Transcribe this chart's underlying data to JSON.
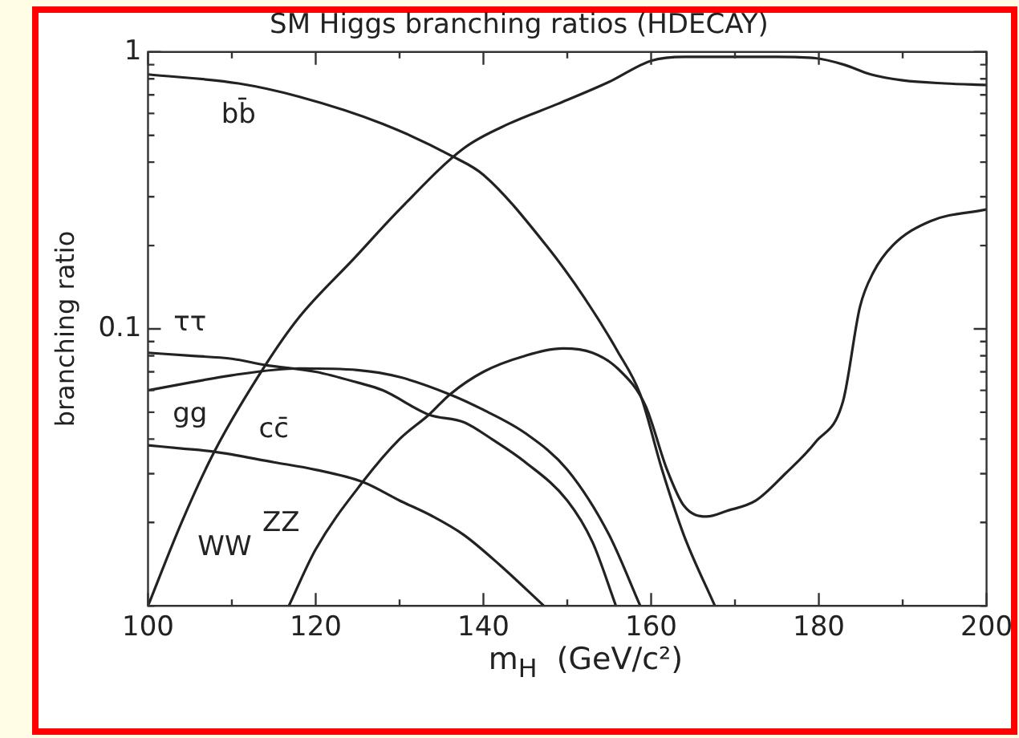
{
  "chart_data": {
    "type": "line",
    "title": "SM Higgs branching ratios (HDECAY)",
    "xlabel": "m$_{H}$  (GeV/c²)",
    "ylabel": "branching ratio",
    "log": "y",
    "grid": false,
    "legend": false,
    "marker": "none",
    "line_style": "solid",
    "xlim": [
      100,
      200
    ],
    "ylim": [
      0.01,
      1
    ],
    "xticks": [
      100,
      {
        "value": 110,
        "label": null
      },
      120,
      {
        "value": 130,
        "label": null
      },
      140,
      {
        "value": 150,
        "label": null
      },
      160,
      {
        "value": 170,
        "label": null
      },
      180,
      {
        "value": 190,
        "label": null
      },
      200
    ],
    "yticks": [
      {
        "value": 0.01,
        "label": null
      },
      {
        "value": 0.02,
        "label": null
      },
      {
        "value": 0.03,
        "label": null
      },
      {
        "value": 0.04,
        "label": null
      },
      {
        "value": 0.05,
        "label": null
      },
      {
        "value": 0.06,
        "label": null
      },
      {
        "value": 0.07,
        "label": null
      },
      {
        "value": 0.08,
        "label": null
      },
      {
        "value": 0.09,
        "label": null
      },
      0.1,
      {
        "value": 0.2,
        "label": null
      },
      {
        "value": 0.3,
        "label": null
      },
      {
        "value": 0.4,
        "label": null
      },
      {
        "value": 0.5,
        "label": null
      },
      {
        "value": 0.6,
        "label": null
      },
      {
        "value": 0.7,
        "label": null
      },
      {
        "value": 0.8,
        "label": null
      },
      {
        "value": 0.9,
        "label": null
      },
      1
    ],
    "series": [
      {
        "name": "bb̄",
        "color": "#222222",
        "x": [
          100,
          110.8,
          118,
          128,
          136.3,
          140,
          147.5,
          152,
          156,
          158.7,
          161.3,
          163.9,
          167.6
        ],
        "values": [
          0.83,
          0.77,
          0.69,
          0.55,
          0.42,
          0.36,
          0.2,
          0.13,
          0.083,
          0.058,
          0.031,
          0.018,
          0.01
        ]
      },
      {
        "name": "WW",
        "color": "#222222",
        "x": [
          100,
          104,
          107.9,
          114,
          118,
          124.6,
          130,
          137.7,
          143,
          148.9,
          155,
          160,
          164,
          170,
          175,
          179.6,
          183,
          186.2,
          190,
          195,
          200
        ],
        "values": [
          0.01,
          0.02,
          0.036,
          0.074,
          0.11,
          0.18,
          0.27,
          0.45,
          0.55,
          0.65,
          0.78,
          0.93,
          0.96,
          0.96,
          0.96,
          0.95,
          0.9,
          0.83,
          0.79,
          0.77,
          0.76
        ]
      },
      {
        "name": "ττ",
        "color": "#222222",
        "x": [
          100,
          105,
          110,
          114,
          120,
          125,
          128,
          133.5,
          137.7,
          141,
          145,
          150,
          153,
          155.8
        ],
        "values": [
          0.082,
          0.08,
          0.078,
          0.074,
          0.07,
          0.064,
          0.06,
          0.049,
          0.046,
          0.04,
          0.033,
          0.024,
          0.017,
          0.01
        ]
      },
      {
        "name": "gg",
        "color": "#222222",
        "x": [
          100,
          105,
          110,
          118,
          125,
          130,
          136,
          140,
          145,
          150,
          155,
          158.7
        ],
        "values": [
          0.06,
          0.064,
          0.068,
          0.072,
          0.071,
          0.067,
          0.058,
          0.051,
          0.042,
          0.031,
          0.018,
          0.01
        ]
      },
      {
        "name": "ZZ",
        "color": "#222222",
        "x": [
          116.8,
          120,
          125.6,
          130,
          133.5,
          136,
          140,
          145,
          149.5,
          153,
          156,
          159.3,
          161.9,
          163.9,
          166.6,
          169,
          172.5,
          176,
          179.6,
          182.9,
          184.9,
          186.5,
          188.8,
          193.3,
          200
        ],
        "values": [
          0.01,
          0.016,
          0.028,
          0.04,
          0.049,
          0.058,
          0.07,
          0.08,
          0.085,
          0.082,
          0.072,
          0.053,
          0.031,
          0.023,
          0.021,
          0.022,
          0.024,
          0.03,
          0.039,
          0.055,
          0.12,
          0.16,
          0.2,
          0.245,
          0.27
        ]
      },
      {
        "name": "cc̄",
        "color": "#222222",
        "x": [
          100,
          104,
          107.9,
          115,
          120,
          125.6,
          130,
          134,
          137.7,
          142,
          147.2
        ],
        "values": [
          0.038,
          0.037,
          0.036,
          0.033,
          0.031,
          0.028,
          0.024,
          0.021,
          0.018,
          0.014,
          0.01
        ]
      }
    ]
  }
}
